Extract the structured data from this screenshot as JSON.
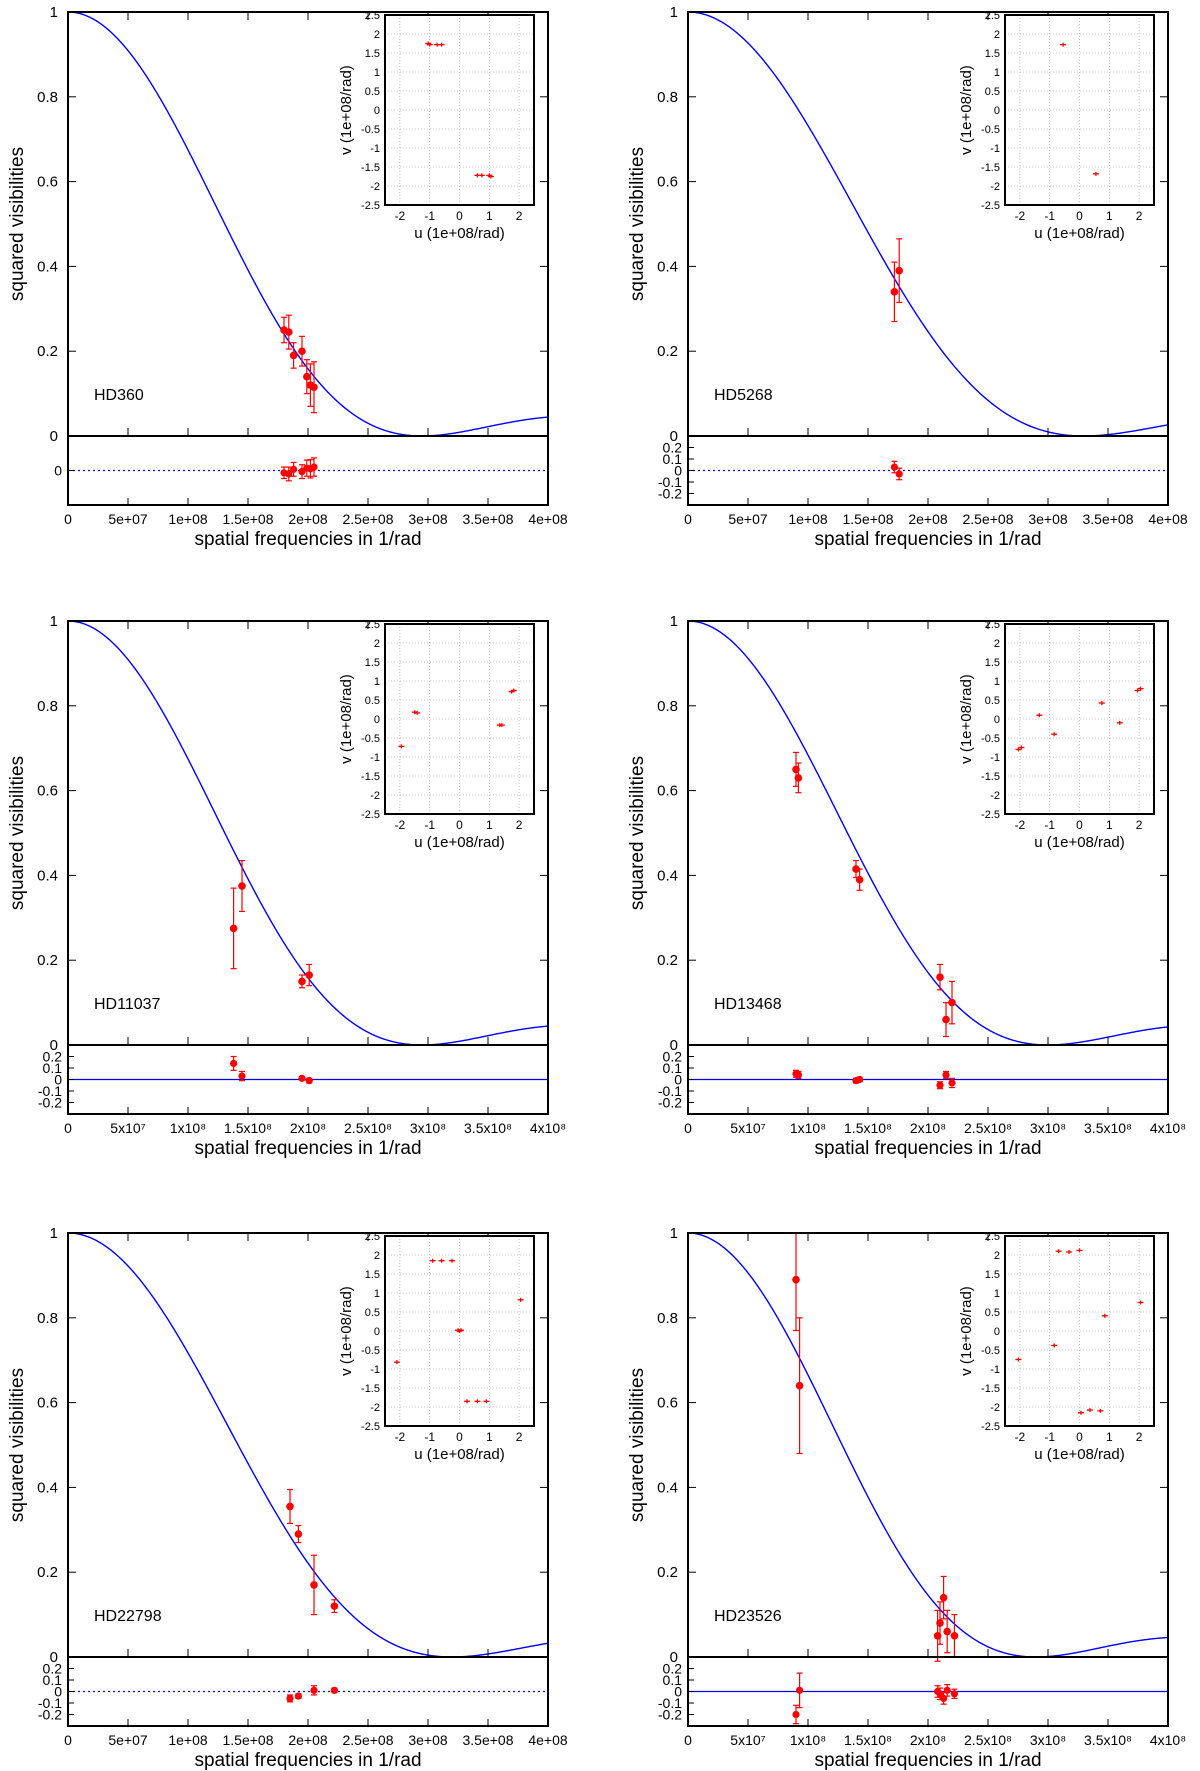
{
  "figure": {
    "main_y_ticks": [
      "0",
      "0.2",
      "0.4",
      "0.6",
      "0.8",
      "1"
    ],
    "ylabel": "squared visibilities",
    "inset_xlabel": "u (1e+08/rad)",
    "inset_ylabel": "v (1e+08/rad)",
    "inset_ticks_x": [
      "-2",
      "-1",
      "0",
      "1",
      "2"
    ],
    "inset_ticks_y": [
      "-2.5",
      "-2",
      "-1.5",
      "-1",
      "-0.5",
      "0",
      "0.5",
      "1",
      "1.5",
      "2",
      "2.5"
    ],
    "colors": {
      "model": "#0000ff",
      "data": "#ff0000",
      "grid": "#999999"
    }
  },
  "chart_data": [
    {
      "type": "scatter",
      "star": "HD360",
      "xlabel": "spatial frequencies in 1/rad",
      "x_ticks": [
        "0",
        "5e+07",
        "1e+08",
        "1.5e+08",
        "2e+08",
        "2.5e+08",
        "3e+08",
        "3.5e+08",
        "4e+08"
      ],
      "res_ticks": [
        "0"
      ],
      "res_ylim": [
        -0.3,
        0.3
      ],
      "res_line": "dotted",
      "xlim": [
        0,
        400000000
      ],
      "ylim": [
        0,
        1
      ],
      "model": {
        "first_null": 295000000
      },
      "points": [
        [
          180000000,
          0.25,
          0.03
        ],
        [
          184000000,
          0.245,
          0.04
        ],
        [
          188000000,
          0.19,
          0.03
        ],
        [
          195000000,
          0.2,
          0.035
        ],
        [
          199000000,
          0.14,
          0.04
        ],
        [
          202000000,
          0.12,
          0.05
        ],
        [
          205000000,
          0.115,
          0.06
        ]
      ],
      "residuals": [
        [
          180000000,
          -0.02,
          0.05
        ],
        [
          184000000,
          -0.03,
          0.06
        ],
        [
          188000000,
          0.01,
          0.06
        ],
        [
          195000000,
          -0.01,
          0.06
        ],
        [
          199000000,
          0.02,
          0.07
        ],
        [
          202000000,
          0.015,
          0.08
        ],
        [
          205000000,
          0.03,
          0.08
        ]
      ],
      "uv": [
        [
          -1.05,
          1.75
        ],
        [
          -1.0,
          1.72
        ],
        [
          -0.75,
          1.72
        ],
        [
          -0.6,
          1.72
        ],
        [
          1.05,
          -1.75
        ],
        [
          1.0,
          -1.72
        ],
        [
          0.75,
          -1.72
        ],
        [
          0.6,
          -1.72
        ]
      ]
    },
    {
      "type": "scatter",
      "star": "HD5268",
      "xlabel": "spatial frequencies in 1/rad",
      "x_ticks": [
        "0",
        "5e+07",
        "1e+08",
        "1.5e+08",
        "2e+08",
        "2.5e+08",
        "3e+08",
        "3.5e+08",
        "4e+08"
      ],
      "res_ticks": [
        "0.2",
        "0.1",
        "0",
        "-0.1",
        "-0.2"
      ],
      "res_ylim": [
        -0.3,
        0.3
      ],
      "res_line": "dotted",
      "xlim": [
        0,
        400000000
      ],
      "ylim": [
        0,
        1
      ],
      "model": {
        "first_null": 330000000
      },
      "points": [
        [
          172000000,
          0.34,
          0.07
        ],
        [
          176000000,
          0.39,
          0.075
        ]
      ],
      "residuals": [
        [
          172000000,
          0.03,
          0.05
        ],
        [
          176000000,
          -0.03,
          0.05
        ]
      ],
      "uv": [
        [
          -0.55,
          1.72
        ],
        [
          0.55,
          -1.68
        ]
      ]
    },
    {
      "type": "scatter",
      "star": "HD11037",
      "xlabel": "spatial frequencies in 1/rad",
      "x_ticks": [
        "0",
        "5x10⁷",
        "1x10⁸",
        "1.5x10⁸",
        "2x10⁸",
        "2.5x10⁸",
        "3x10⁸",
        "3.5x10⁸",
        "4x10⁸"
      ],
      "res_ticks": [
        "0.2",
        "0.1",
        "0",
        "-0.1",
        "-0.2"
      ],
      "res_ylim": [
        -0.3,
        0.3
      ],
      "res_line": "solid",
      "xlim": [
        0,
        400000000
      ],
      "ylim": [
        0,
        1
      ],
      "model": {
        "first_null": 295000000
      },
      "points": [
        [
          138000000,
          0.275,
          0.095
        ],
        [
          145000000,
          0.375,
          0.06
        ],
        [
          195000000,
          0.15,
          0.015
        ],
        [
          201000000,
          0.165,
          0.025
        ]
      ],
      "residuals": [
        [
          138000000,
          0.14,
          0.06
        ],
        [
          145000000,
          0.03,
          0.04
        ],
        [
          195000000,
          0.01,
          0.015
        ],
        [
          201000000,
          -0.01,
          0.02
        ]
      ],
      "uv": [
        [
          -1.95,
          -0.72
        ],
        [
          -1.5,
          0.18
        ],
        [
          -1.42,
          0.16
        ],
        [
          1.35,
          -0.16
        ],
        [
          1.42,
          -0.16
        ],
        [
          1.75,
          0.72
        ],
        [
          1.82,
          0.75
        ]
      ]
    },
    {
      "type": "scatter",
      "star": "HD13468",
      "xlabel": "spatial frequencies in 1/rad",
      "x_ticks": [
        "0",
        "5x10⁷",
        "1x10⁸",
        "1.5x10⁸",
        "2x10⁸",
        "2.5x10⁸",
        "3x10⁸",
        "3.5x10⁸",
        "4x10⁸"
      ],
      "res_ticks": [
        "0.2",
        "0.1",
        "0",
        "-0.1",
        "-0.2"
      ],
      "res_ylim": [
        -0.3,
        0.3
      ],
      "res_line": "solid",
      "xlim": [
        0,
        400000000
      ],
      "ylim": [
        0,
        1
      ],
      "model": {
        "first_null": 300000000
      },
      "points": [
        [
          90000000,
          0.65,
          0.04
        ],
        [
          92000000,
          0.63,
          0.035
        ],
        [
          140000000,
          0.415,
          0.02
        ],
        [
          143000000,
          0.39,
          0.025
        ],
        [
          210000000,
          0.16,
          0.03
        ],
        [
          215000000,
          0.06,
          0.04
        ],
        [
          220000000,
          0.1,
          0.05
        ]
      ],
      "residuals": [
        [
          90000000,
          0.05,
          0.03
        ],
        [
          92000000,
          0.04,
          0.03
        ],
        [
          140000000,
          -0.01,
          0.02
        ],
        [
          143000000,
          0.0,
          0.02
        ],
        [
          210000000,
          -0.05,
          0.03
        ],
        [
          215000000,
          0.04,
          0.03
        ],
        [
          220000000,
          -0.03,
          0.04
        ]
      ],
      "uv": [
        [
          -2.05,
          -0.8
        ],
        [
          -1.95,
          -0.75
        ],
        [
          -1.35,
          0.1
        ],
        [
          -0.85,
          -0.4
        ],
        [
          0.75,
          0.42
        ],
        [
          1.35,
          -0.1
        ],
        [
          1.95,
          0.75
        ],
        [
          2.05,
          0.8
        ]
      ]
    },
    {
      "type": "scatter",
      "star": "HD22798",
      "xlabel": "spatial frequencies in 1/rad",
      "x_ticks": [
        "0",
        "5e+07",
        "1e+08",
        "1.5e+08",
        "2e+08",
        "2.5e+08",
        "3e+08",
        "3.5e+08",
        "4e+08"
      ],
      "res_ticks": [
        "0.2",
        "0.1",
        "0",
        "-0.1",
        "-0.2"
      ],
      "res_ylim": [
        -0.3,
        0.3
      ],
      "res_line": "dotted",
      "xlim": [
        0,
        400000000
      ],
      "ylim": [
        0,
        1
      ],
      "model": {
        "first_null": 320000000
      },
      "points": [
        [
          185000000,
          0.355,
          0.04
        ],
        [
          192000000,
          0.29,
          0.02
        ],
        [
          205000000,
          0.17,
          0.07
        ],
        [
          222000000,
          0.12,
          0.015
        ]
      ],
      "residuals": [
        [
          185000000,
          -0.06,
          0.03
        ],
        [
          192000000,
          -0.04,
          0.02
        ],
        [
          205000000,
          0.01,
          0.04
        ],
        [
          222000000,
          0.01,
          0.02
        ]
      ],
      "uv": [
        [
          -2.1,
          -0.82
        ],
        [
          -0.9,
          1.85
        ],
        [
          -0.6,
          1.85
        ],
        [
          -0.25,
          1.85
        ],
        [
          -0.05,
          0.02
        ],
        [
          0.0,
          0.0
        ],
        [
          0.05,
          0.02
        ],
        [
          0.25,
          -1.85
        ],
        [
          0.6,
          -1.85
        ],
        [
          0.9,
          -1.85
        ],
        [
          2.05,
          0.82
        ]
      ]
    },
    {
      "type": "scatter",
      "star": "HD23526",
      "xlabel": "spatial frequencies in 1/rad",
      "x_ticks": [
        "0",
        "5x10⁷",
        "1x10⁸",
        "1.5x10⁸",
        "2x10⁸",
        "2.5x10⁸",
        "3x10⁸",
        "3.5x10⁸",
        "4x10⁸"
      ],
      "res_ticks": [
        "0.2",
        "0.1",
        "0",
        "-0.1",
        "-0.2"
      ],
      "res_ylim": [
        -0.3,
        0.3
      ],
      "res_line": "solid",
      "xlim": [
        0,
        400000000
      ],
      "ylim": [
        0,
        1
      ],
      "model": {
        "first_null": 290000000
      },
      "points": [
        [
          90000000,
          0.89,
          0.12
        ],
        [
          93000000,
          0.64,
          0.16
        ],
        [
          208000000,
          0.05,
          0.06
        ],
        [
          210000000,
          0.08,
          0.05
        ],
        [
          213000000,
          0.14,
          0.05
        ],
        [
          216000000,
          0.06,
          0.05
        ],
        [
          222000000,
          0.05,
          0.05
        ]
      ],
      "residuals": [
        [
          90000000,
          -0.2,
          0.08
        ],
        [
          93000000,
          0.01,
          0.15
        ],
        [
          208000000,
          0.0,
          0.05
        ],
        [
          210000000,
          -0.02,
          0.05
        ],
        [
          213000000,
          -0.06,
          0.05
        ],
        [
          216000000,
          0.01,
          0.05
        ],
        [
          222000000,
          -0.02,
          0.04
        ]
      ],
      "uv": [
        [
          -2.05,
          -0.75
        ],
        [
          -0.85,
          -0.38
        ],
        [
          -0.7,
          2.1
        ],
        [
          -0.35,
          2.08
        ],
        [
          0.0,
          2.12
        ],
        [
          0.05,
          -2.15
        ],
        [
          0.35,
          -2.08
        ],
        [
          0.7,
          -2.1
        ],
        [
          0.85,
          0.4
        ],
        [
          2.05,
          0.75
        ]
      ]
    }
  ]
}
